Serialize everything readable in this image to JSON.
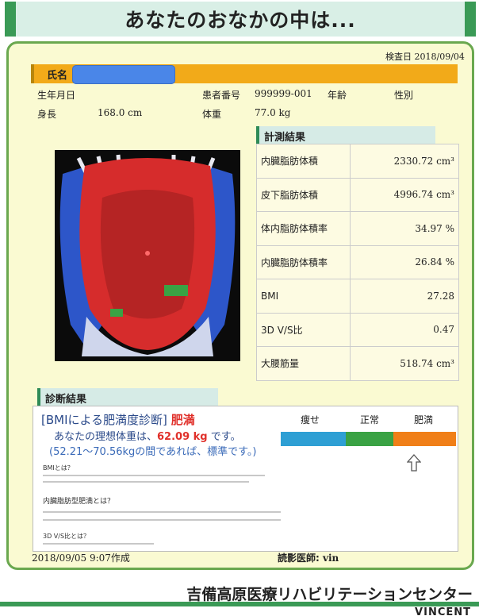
{
  "title": "あなたのおなかの中は...",
  "exam_date_label": "検査日",
  "exam_date": "2018/09/04",
  "patient": {
    "name_label": "氏名",
    "dob_label": "生年月日",
    "id_label": "患者番号",
    "id_value": "999999-001",
    "age_label": "年齢",
    "sex_label": "性別",
    "height_label": "身長",
    "height_value": "168.0 cm",
    "weight_label": "体重",
    "weight_value": "77.0 kg"
  },
  "measurement": {
    "heading": "計測結果",
    "rows": [
      {
        "label": "内臓脂肪体積",
        "value": "2330.72 cm³"
      },
      {
        "label": "皮下脂肪体積",
        "value": "4996.74 cm³"
      },
      {
        "label": "体内脂肪体積率",
        "value": "34.97 %"
      },
      {
        "label": "内臓脂肪体積率",
        "value": "26.84 %"
      },
      {
        "label": "BMI",
        "value": "27.28"
      },
      {
        "label": "3D V/S比",
        "value": "0.47"
      },
      {
        "label": "大腰筋量",
        "value": "518.74 cm³"
      }
    ]
  },
  "diagnosis": {
    "heading": "診断結果",
    "bmi_title": "[BMIによる肥満度診断]",
    "bmi_result": "肥満",
    "ideal_prefix": "あなたの理想体重は、",
    "ideal_weight": "62.09 kg",
    "ideal_suffix": " です。",
    "range_text": "(52.21〜70.56kgの間であれば、標準です。)",
    "scale": [
      {
        "label": "痩せ",
        "color": "#2e9fd4"
      },
      {
        "label": "正常",
        "color": "#3aa244"
      },
      {
        "label": "肥満",
        "color": "#f07f18"
      }
    ],
    "indicator_icon": "up-arrow-icon",
    "note1_heading": "BMIとは？",
    "note2_heading": "内臓脂肪型肥満とは？",
    "note3_heading": "3D V/S比とは？"
  },
  "footer": {
    "created": "2018/09/05 9:07作成",
    "doctor_label": "読影医師:",
    "doctor_name": "vin",
    "hospital": "吉備高原医療リハビリテーションセンター",
    "brand": "VINCENT"
  },
  "colors": {
    "accent_green": "#3a9a56",
    "name_bar": "#f2aa19",
    "sheet_bg": "#fafad2"
  }
}
